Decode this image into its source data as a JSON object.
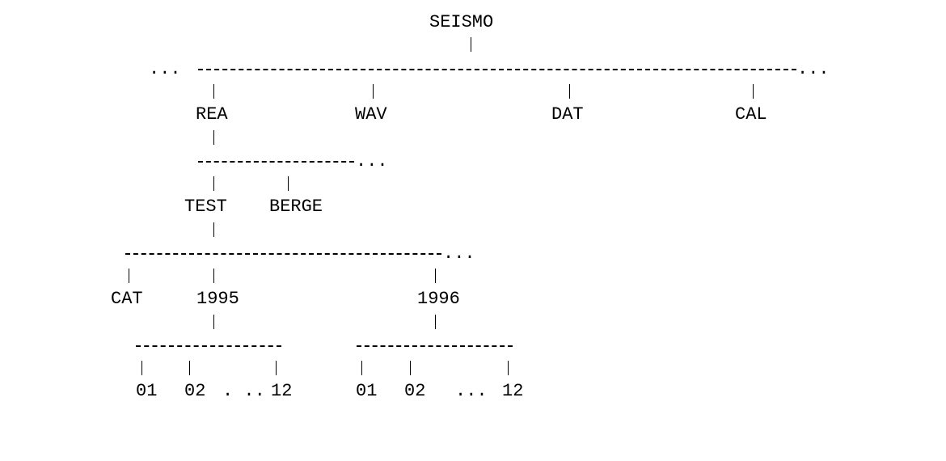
{
  "root": "SEISMO",
  "level1": {
    "leading_ellipsis": "...",
    "trailing_ellipsis": "...",
    "nodes": [
      "REA",
      "WAV",
      "DAT",
      "CAL"
    ]
  },
  "rea_branch": {
    "trailing_ellipsis": "...",
    "nodes": [
      "TEST",
      "BERGE"
    ]
  },
  "test_branch": {
    "trailing_ellipsis": "...",
    "nodes": [
      "CAT",
      "1995",
      "1996"
    ]
  },
  "months_1995": {
    "first": "01",
    "second": "02",
    "ellipsis": ". ..",
    "last": "12"
  },
  "months_1996": {
    "first": "01",
    "second": "02",
    "ellipsis": "...",
    "last": "12"
  }
}
